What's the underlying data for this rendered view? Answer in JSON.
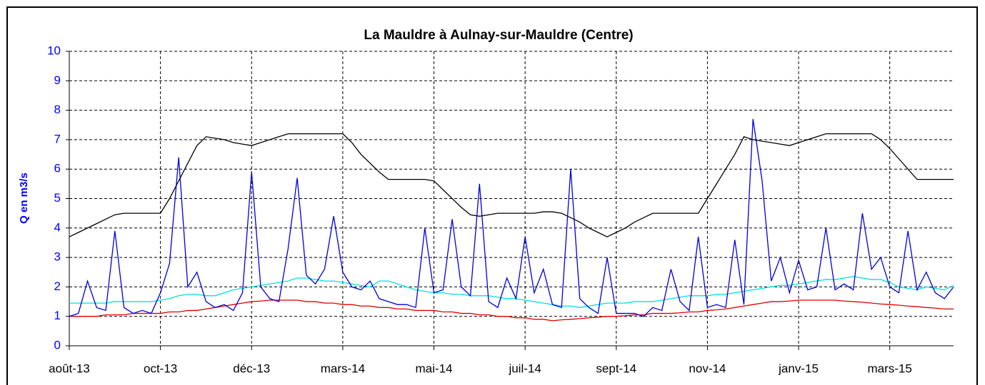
{
  "chart_data": {
    "type": "line",
    "title": "La Mauldre à Aulnay-sur-Mauldre (Centre)",
    "y_label": "Q en m3/s",
    "categories": [
      "août-13",
      null,
      null,
      null,
      null,
      null,
      null,
      null,
      null,
      null,
      "oct-13",
      null,
      null,
      null,
      null,
      null,
      null,
      null,
      null,
      null,
      "déc-13",
      null,
      null,
      null,
      null,
      null,
      null,
      null,
      null,
      null,
      "mars-14",
      null,
      null,
      null,
      null,
      null,
      null,
      null,
      null,
      null,
      "mai-14",
      null,
      null,
      null,
      null,
      null,
      null,
      null,
      null,
      null,
      "juil-14",
      null,
      null,
      null,
      null,
      null,
      null,
      null,
      null,
      null,
      "sept-14",
      null,
      null,
      null,
      null,
      null,
      null,
      null,
      null,
      null,
      "nov-14",
      null,
      null,
      null,
      null,
      null,
      null,
      null,
      null,
      null,
      "janv-15",
      null,
      null,
      null,
      null,
      null,
      null,
      null,
      null,
      null,
      "mars-15",
      null,
      null,
      null,
      null,
      null,
      null,
      null
    ],
    "series": [
      {
        "color": "#000000",
        "values": [
          3.7,
          3.85,
          4.0,
          4.15,
          4.3,
          4.45,
          4.5,
          4.5,
          4.5,
          4.5,
          4.5,
          5.0,
          5.6,
          6.2,
          6.8,
          7.1,
          7.05,
          7.0,
          6.9,
          6.85,
          6.8,
          6.9,
          7.0,
          7.1,
          7.2,
          7.2,
          7.2,
          7.2,
          7.2,
          7.2,
          7.2,
          6.9,
          6.5,
          6.2,
          5.9,
          5.65,
          5.65,
          5.65,
          5.65,
          5.65,
          5.6,
          5.3,
          5.0,
          4.7,
          4.45,
          4.4,
          4.45,
          4.5,
          4.5,
          4.5,
          4.5,
          4.5,
          4.55,
          4.55,
          4.5,
          4.35,
          4.2,
          4.0,
          3.85,
          3.7,
          3.85,
          4.0,
          4.2,
          4.35,
          4.5,
          4.5,
          4.5,
          4.5,
          4.5,
          4.5,
          5.0,
          5.5,
          6.0,
          6.5,
          7.1,
          7.0,
          6.95,
          6.9,
          6.85,
          6.8,
          6.9,
          7.0,
          7.1,
          7.2,
          7.2,
          7.2,
          7.2,
          7.2,
          7.2,
          7.0,
          6.7,
          6.35,
          6.0,
          5.65,
          5.65,
          5.65,
          5.65,
          5.65
        ]
      },
      {
        "color": "#00e0e0",
        "values": [
          1.45,
          1.45,
          1.45,
          1.45,
          1.45,
          1.5,
          1.5,
          1.5,
          1.5,
          1.5,
          1.55,
          1.6,
          1.7,
          1.75,
          1.75,
          1.7,
          1.7,
          1.8,
          1.9,
          1.95,
          2.0,
          2.05,
          2.1,
          2.15,
          2.2,
          2.3,
          2.3,
          2.25,
          2.2,
          2.2,
          2.15,
          2.1,
          2.05,
          2.0,
          2.2,
          2.2,
          2.1,
          2.0,
          1.9,
          1.85,
          1.8,
          1.8,
          1.75,
          1.75,
          1.7,
          1.7,
          1.7,
          1.65,
          1.6,
          1.6,
          1.55,
          1.5,
          1.45,
          1.4,
          1.35,
          1.35,
          1.3,
          1.35,
          1.4,
          1.45,
          1.45,
          1.45,
          1.5,
          1.5,
          1.5,
          1.55,
          1.6,
          1.65,
          1.7,
          1.7,
          1.7,
          1.75,
          1.75,
          1.8,
          1.85,
          1.9,
          1.95,
          2.0,
          2.05,
          2.05,
          2.1,
          2.15,
          2.2,
          2.25,
          2.25,
          2.3,
          2.35,
          2.3,
          2.25,
          2.25,
          2.15,
          2.0,
          1.95,
          1.9,
          2.0,
          1.95,
          1.9,
          2.05
        ]
      },
      {
        "color": "#e00000",
        "values": [
          1.0,
          1.0,
          1.0,
          1.0,
          1.05,
          1.05,
          1.05,
          1.1,
          1.1,
          1.1,
          1.1,
          1.15,
          1.15,
          1.2,
          1.2,
          1.25,
          1.3,
          1.35,
          1.4,
          1.45,
          1.5,
          1.52,
          1.55,
          1.55,
          1.55,
          1.55,
          1.5,
          1.5,
          1.45,
          1.45,
          1.4,
          1.4,
          1.35,
          1.35,
          1.3,
          1.3,
          1.25,
          1.25,
          1.2,
          1.2,
          1.2,
          1.15,
          1.15,
          1.1,
          1.1,
          1.05,
          1.05,
          1.0,
          1.0,
          0.95,
          0.95,
          0.9,
          0.9,
          0.85,
          0.88,
          0.9,
          0.92,
          0.95,
          0.97,
          1.0,
          1.0,
          1.02,
          1.05,
          1.05,
          1.1,
          1.1,
          1.1,
          1.12,
          1.15,
          1.15,
          1.2,
          1.22,
          1.25,
          1.3,
          1.35,
          1.4,
          1.45,
          1.5,
          1.5,
          1.52,
          1.55,
          1.55,
          1.55,
          1.55,
          1.55,
          1.52,
          1.5,
          1.48,
          1.45,
          1.42,
          1.4,
          1.38,
          1.35,
          1.33,
          1.3,
          1.28,
          1.25,
          1.25
        ]
      },
      {
        "color": "#0000dd",
        "values": [
          1.0,
          1.1,
          2.2,
          1.3,
          1.2,
          3.9,
          1.3,
          1.1,
          1.2,
          1.1,
          1.8,
          2.8,
          6.4,
          2.0,
          2.5,
          1.5,
          1.3,
          1.4,
          1.2,
          1.8,
          5.9,
          2.0,
          1.6,
          1.5,
          3.3,
          5.7,
          2.4,
          2.1,
          2.6,
          4.4,
          2.5,
          2.0,
          1.9,
          2.2,
          1.6,
          1.5,
          1.4,
          1.4,
          1.3,
          4.0,
          1.8,
          1.9,
          4.3,
          2.0,
          1.7,
          5.5,
          1.5,
          1.3,
          2.3,
          1.6,
          3.7,
          1.8,
          2.6,
          1.4,
          1.3,
          6.0,
          1.6,
          1.3,
          1.1,
          3.0,
          1.1,
          1.1,
          1.1,
          1.0,
          1.3,
          1.2,
          2.6,
          1.5,
          1.2,
          3.7,
          1.3,
          1.4,
          1.3,
          3.6,
          1.4,
          7.7,
          5.6,
          2.2,
          3.0,
          1.8,
          2.9,
          1.9,
          2.0,
          4.0,
          1.9,
          2.1,
          1.9,
          4.5,
          2.6,
          3.0,
          2.0,
          1.8,
          3.9,
          1.9,
          2.5,
          1.8,
          1.6,
          2.0
        ]
      }
    ],
    "ylim": [
      0,
      10
    ],
    "yticks": [
      0,
      1,
      2,
      3,
      4,
      5,
      6,
      7,
      8,
      9,
      10
    ],
    "grid": true
  }
}
